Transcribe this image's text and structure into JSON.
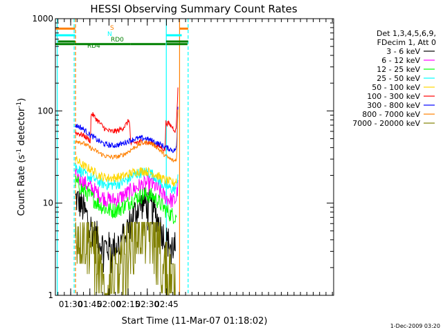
{
  "chart_data": {
    "type": "line",
    "title": "HESSI Observing Summary Count Rates",
    "xlabel": "Start Time (11-Mar-07 01:18:02)",
    "ylabel_main": "Count Rate (s",
    "ylabel_sup1": "-1",
    "ylabel_mid": " detector",
    "ylabel_sup2": "-1",
    "ylabel_end": ")",
    "footer": "1-Dec-2009 03:20",
    "yscale": "log",
    "ylim": [
      1,
      1000
    ],
    "xlim": [
      78,
      296
    ],
    "x_unit": "minutes after 00:00 UT",
    "x_ticks": [
      {
        "value": 90,
        "label": "01:30"
      },
      {
        "value": 105,
        "label": "01:45"
      },
      {
        "value": 120,
        "label": "02:00"
      },
      {
        "value": 135,
        "label": "02:15"
      },
      {
        "value": 150,
        "label": "02:30"
      },
      {
        "value": 165,
        "label": "02:45"
      }
    ],
    "y_ticks": [
      {
        "value": 1,
        "label": "1"
      },
      {
        "value": 10,
        "label": "10"
      },
      {
        "value": 100,
        "label": "100"
      },
      {
        "value": 1000,
        "label": "1000"
      }
    ],
    "legend": {
      "placement": "right",
      "header_lines": [
        "Det 1,3,4,5,6,9,",
        "FDecim 1, Att 0"
      ]
    },
    "series": [
      {
        "name": "3 - 6 keV",
        "color": "#000000",
        "x": [
          93.6,
          95,
          97,
          99,
          101,
          103,
          105,
          107,
          109,
          111,
          113,
          115,
          117,
          119,
          121,
          123,
          125,
          127,
          129,
          131,
          133,
          135,
          137,
          139,
          141,
          143,
          145,
          147,
          149,
          151,
          153,
          155,
          157,
          159,
          161,
          163,
          165,
          167,
          169,
          171,
          172
        ],
        "y": [
          11,
          11,
          10,
          9,
          8,
          7,
          6,
          5,
          4.5,
          4.2,
          3.8,
          3.5,
          3.4,
          3.3,
          3.3,
          3.3,
          3.4,
          3.6,
          3.8,
          4.2,
          4.8,
          5.5,
          6.2,
          7.2,
          8.2,
          9,
          9.6,
          10,
          10,
          9.6,
          9,
          8.3,
          7.3,
          6.2,
          5,
          4.4,
          3.9,
          3.7,
          3.5,
          3.3,
          3.3
        ]
      },
      {
        "name": "6 - 12 keV",
        "color": "#ff00ff",
        "x": [
          93.6,
          96,
          99,
          102,
          105,
          108,
          111,
          114,
          117,
          120,
          123,
          126,
          129,
          132,
          135,
          138,
          141,
          144,
          147,
          150,
          153,
          156,
          159,
          162,
          165,
          168,
          171,
          172.5,
          174
        ],
        "y": [
          20,
          19,
          17,
          16,
          15,
          14,
          12.8,
          11.8,
          11.2,
          10.8,
          10.8,
          11,
          11.5,
          12.2,
          13,
          13.8,
          14.6,
          15.3,
          16,
          16.3,
          16,
          15.2,
          14,
          12.5,
          11.5,
          10.8,
          10.5,
          11,
          15
        ]
      },
      {
        "name": "12 - 25 keV",
        "color": "#00ff00",
        "x": [
          93.6,
          96,
          99,
          102,
          105,
          108,
          111,
          114,
          117,
          120,
          123,
          126,
          129,
          132,
          135,
          138,
          141,
          144,
          147,
          150,
          153,
          156,
          159,
          162,
          165,
          168,
          171,
          173
        ],
        "y": [
          17,
          16,
          14,
          13,
          12,
          11,
          10,
          9.3,
          8.7,
          8.4,
          8.3,
          8.5,
          8.8,
          9.3,
          10,
          10.8,
          11.4,
          11.9,
          12.2,
          12.3,
          12,
          11.3,
          10.3,
          9.2,
          8.3,
          7.6,
          7.2,
          7.5
        ]
      },
      {
        "name": "25 - 50 keV",
        "color": "#00ffff",
        "x": [
          93.6,
          96,
          99,
          102,
          105,
          108,
          111,
          114,
          117,
          120,
          123,
          126,
          129,
          132,
          135,
          138,
          141,
          144,
          147,
          150,
          153,
          156,
          159,
          162,
          165,
          168,
          171,
          173,
          174
        ],
        "y": [
          25,
          23.5,
          21.5,
          20,
          19,
          18.5,
          17.3,
          16.5,
          16,
          15.8,
          15.8,
          16,
          16.5,
          17.3,
          18,
          19.3,
          20.5,
          21.2,
          21.6,
          21.5,
          21,
          19.5,
          17.5,
          16,
          15.3,
          14.5,
          14,
          15,
          21
        ]
      },
      {
        "name": "50 - 100 keV",
        "color": "#ffd700",
        "x": [
          93.6,
          96,
          99,
          102,
          105,
          108,
          111,
          114,
          117,
          120,
          123,
          126,
          129,
          132,
          135,
          138,
          141,
          144,
          147,
          150,
          153,
          156,
          159,
          162,
          165,
          168,
          171,
          173
        ],
        "y": [
          30,
          28,
          26,
          24.5,
          23.5,
          22,
          20.5,
          19.5,
          19,
          18.8,
          18.8,
          19,
          19.3,
          19.8,
          20.5,
          21.3,
          21.8,
          22.2,
          22.3,
          22,
          21.5,
          20.5,
          19.5,
          18.3,
          17.5,
          17,
          16.5,
          18
        ]
      },
      {
        "name": "100 - 300 keV",
        "color": "#ff0000",
        "x": [
          93.6,
          96,
          99,
          102,
          105.5,
          106,
          109,
          112,
          115,
          118,
          121,
          124,
          127,
          130,
          133,
          136,
          137,
          140,
          143,
          146,
          149,
          152,
          155,
          158,
          161,
          164,
          164.5,
          167,
          170,
          172.5,
          174
        ],
        "y": [
          58,
          57,
          55,
          52,
          47,
          95,
          85,
          76,
          68,
          62,
          60,
          60,
          61,
          64,
          70,
          80,
          44,
          45,
          46,
          46.5,
          46,
          45,
          44,
          42,
          40,
          38,
          75,
          72,
          66,
          60,
          170
        ]
      },
      {
        "name": "300 - 800 keV",
        "color": "#0000ff",
        "x": [
          93.6,
          96,
          99,
          102,
          105,
          108,
          111,
          114,
          117,
          120,
          123,
          126,
          129,
          132,
          135,
          138,
          141,
          144,
          147,
          150,
          153,
          156,
          159,
          162,
          165,
          168,
          171,
          173,
          174
        ],
        "y": [
          70,
          68,
          65,
          60,
          55,
          52,
          48,
          45.5,
          43.5,
          42.5,
          42,
          42.5,
          43.5,
          45,
          47,
          48.5,
          50,
          50.5,
          50.5,
          49.5,
          48,
          46,
          44,
          42,
          40,
          38.5,
          37,
          40,
          110
        ]
      },
      {
        "name": "800 - 7000 keV",
        "color": "#ff8000",
        "x": [
          93.6,
          96,
          99,
          102,
          105,
          108,
          111,
          114,
          117,
          120,
          123,
          126,
          129,
          132,
          135,
          138,
          141,
          144,
          147,
          150,
          153,
          156,
          159,
          162,
          165,
          168,
          171,
          173,
          174
        ],
        "y": [
          48,
          47,
          45,
          43,
          40,
          38,
          36,
          34,
          32.5,
          31.8,
          31.5,
          31.8,
          32.5,
          34,
          36,
          38.5,
          41,
          43.5,
          45,
          45.5,
          44.5,
          42,
          38.5,
          35,
          32,
          30,
          28.5,
          30,
          100
        ]
      },
      {
        "name": "7000 - 20000 keV",
        "color": "#808000",
        "x": [
          93.6,
          96,
          99,
          102,
          105,
          108,
          111,
          114,
          117,
          120,
          123,
          126,
          129,
          132,
          135,
          138,
          141,
          144,
          147,
          150,
          153,
          156,
          159,
          162,
          165,
          168,
          171,
          172
        ],
        "y": [
          5,
          5.2,
          5,
          4.6,
          4,
          3.4,
          2.2,
          1.2,
          1.1,
          1.3,
          1.2,
          1.3,
          1.4,
          2,
          3,
          4.2,
          5.2,
          5.8,
          6,
          5.7,
          5,
          4.2,
          3.1,
          2.2,
          1.6,
          1.3,
          1.1,
          1.1
        ]
      }
    ],
    "step_changes": [
      {
        "x": 105.5,
        "series": [
          "100 - 300 keV"
        ]
      },
      {
        "x": 136.7,
        "series": [
          "100 - 300 keV",
          "50 - 100 keV",
          "25 - 50 keV"
        ]
      },
      {
        "x": 164.4,
        "series": [
          "100 - 300 keV"
        ]
      }
    ],
    "flag_bars": [
      {
        "label": "S",
        "color": "#ff8000",
        "level": 780,
        "segments": [
          [
            78,
            93.5
          ],
          [
            175.5,
            182
          ]
        ]
      },
      {
        "label": "N",
        "color": "#00ffff",
        "level": 660,
        "segments": [
          [
            78,
            93.5
          ],
          [
            164.7,
            177
          ]
        ]
      },
      {
        "label": "RD0",
        "color": "#008000",
        "level": 565,
        "segments": [
          [
            80,
            93.5
          ],
          [
            164.7,
            182
          ]
        ]
      },
      {
        "label": "RD4",
        "color": "#008000",
        "level": 530,
        "segments": [
          [
            78,
            93
          ],
          [
            93,
            106
          ],
          [
            106,
            137
          ],
          [
            137,
            164.4
          ],
          [
            165,
            181.5
          ]
        ]
      }
    ],
    "vertical_markers": [
      {
        "x": 79.5,
        "color": "#00ffff",
        "style": "solid"
      },
      {
        "x": 92.7,
        "color": "#00ffff",
        "style": "dashed"
      },
      {
        "x": 93.8,
        "color": "#ff8000",
        "style": "dashed"
      },
      {
        "x": 164.9,
        "color": "#00ffff",
        "style": "solid"
      },
      {
        "x": 175.3,
        "color": "#ff8000",
        "style": "solid"
      },
      {
        "x": 182,
        "color": "#00ffff",
        "style": "dashed"
      }
    ]
  }
}
